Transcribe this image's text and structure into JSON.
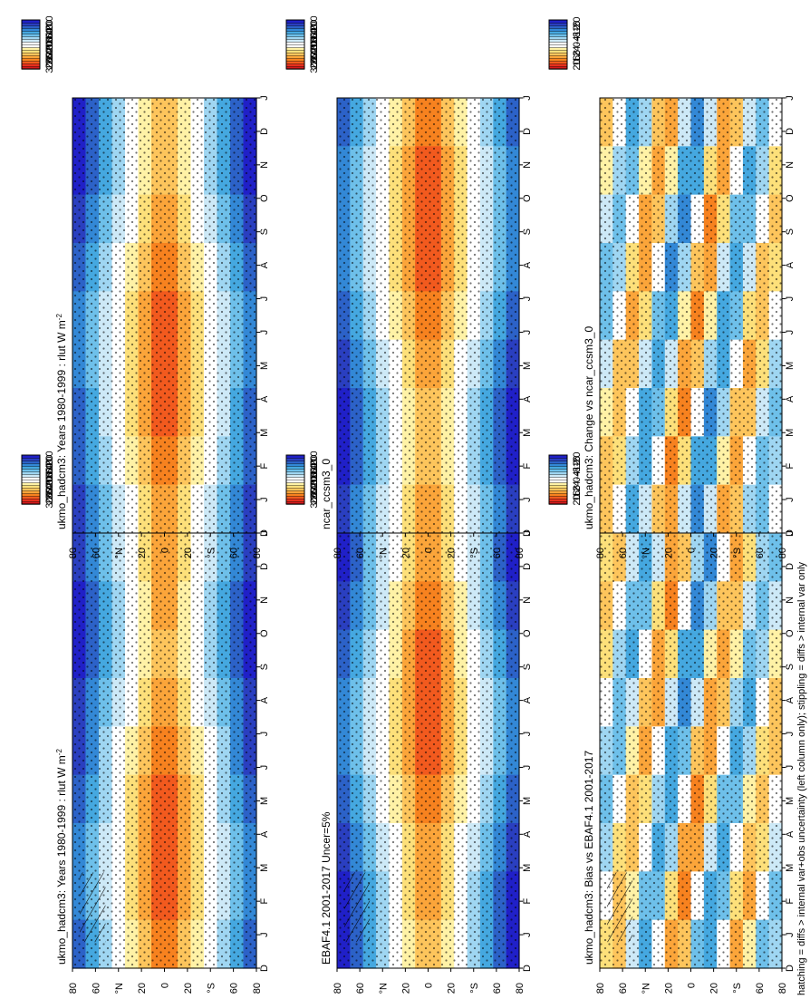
{
  "footnote": "hatching = diffs > internal var+obs uncertainty (left column only); stippling = diffs > internal var only",
  "months": [
    "D",
    "J",
    "F",
    "M",
    "A",
    "M",
    "J",
    "J",
    "A",
    "S",
    "O",
    "N",
    "D",
    "J"
  ],
  "lat_ticks": [
    "80",
    "60",
    "°N",
    "20",
    "0",
    "20",
    "°S",
    "60",
    "80"
  ],
  "palettes": {
    "abs": [
      "#d7191c",
      "#e8301e",
      "#f25a1e",
      "#f7821f",
      "#fba53a",
      "#fdc55c",
      "#fde07a",
      "#fff2a6",
      "#ffffff",
      "#ffffff",
      "#cde9f7",
      "#9fd6f2",
      "#6ec0ea",
      "#45a8e0",
      "#3388d6",
      "#2c62c8",
      "#2a3fc0",
      "#2020c8"
    ],
    "diff": [
      "#d7191c",
      "#e8301e",
      "#f25a1e",
      "#f7821f",
      "#fba53a",
      "#fdc55c",
      "#fde07a",
      "#fff2a6",
      "#ffffff",
      "#ffffff",
      "#cde9f7",
      "#9fd6f2",
      "#6ec0ea",
      "#45a8e0",
      "#3388d6",
      "#2c62c8",
      "#2a3fc0",
      "#2020c8"
    ]
  },
  "chart_data": [
    {
      "type": "heatmap",
      "title": "ukmo_hadcm3: Years 1980-1999 : rlut W m",
      "units_superscript": "-2",
      "x": [
        "D",
        "J",
        "F",
        "M",
        "A",
        "M",
        "J",
        "J",
        "A",
        "S",
        "O",
        "N",
        "D",
        "J"
      ],
      "y": [
        "80",
        "60",
        "°N",
        "20",
        "0",
        "20",
        "°S",
        "60",
        "80"
      ],
      "colorbar": {
        "ticks": [
          "300",
          "280",
          "260",
          "240",
          "220",
          "200",
          "180",
          "160",
          "140",
          "120",
          "100"
        ],
        "range": [
          100,
          310
        ]
      },
      "hatching": true,
      "stippling": true
    },
    {
      "type": "heatmap",
      "title": "ukmo_hadcm3: Years 1980-1999 : rlut W m",
      "units_superscript": "-2",
      "x": [
        "D",
        "J",
        "F",
        "M",
        "A",
        "M",
        "J",
        "J",
        "A",
        "S",
        "O",
        "N",
        "D",
        "J"
      ],
      "y": [
        "80",
        "60",
        "°N",
        "20",
        "0",
        "20",
        "°S",
        "60",
        "80"
      ],
      "colorbar": {
        "ticks": [
          "300",
          "280",
          "260",
          "240",
          "220",
          "200",
          "180",
          "160",
          "140",
          "120",
          "100"
        ],
        "range": [
          100,
          310
        ]
      },
      "hatching": false,
      "stippling": true
    },
    {
      "type": "heatmap",
      "title": "EBAF4.1 2001-2017 Uncer=5%",
      "units_superscript": "",
      "x": [
        "D",
        "J",
        "F",
        "M",
        "A",
        "M",
        "J",
        "J",
        "A",
        "S",
        "O",
        "N",
        "D",
        "J"
      ],
      "y": [
        "80",
        "60",
        "°N",
        "20",
        "0",
        "20",
        "°S",
        "60",
        "80"
      ],
      "colorbar": {
        "ticks": [
          "300",
          "280",
          "260",
          "240",
          "220",
          "200",
          "180",
          "160",
          "140",
          "120",
          "100"
        ],
        "range": [
          100,
          310
        ]
      },
      "hatching": true,
      "stippling": true
    },
    {
      "type": "heatmap",
      "title": "ncar_ccsm3_0",
      "units_superscript": "",
      "x": [
        "D",
        "J",
        "F",
        "M",
        "A",
        "M",
        "J",
        "J",
        "A",
        "S",
        "O",
        "N",
        "D",
        "J"
      ],
      "y": [
        "80",
        "60",
        "°N",
        "20",
        "0",
        "20",
        "°S",
        "60",
        "80"
      ],
      "colorbar": {
        "ticks": [
          "300",
          "280",
          "260",
          "240",
          "220",
          "200",
          "180",
          "160",
          "140",
          "120",
          "100"
        ],
        "range": [
          100,
          310
        ]
      },
      "hatching": false,
      "stippling": true
    },
    {
      "type": "heatmap",
      "title": "ukmo_hadcm3: Bias vs EBAF4.1 2001-2017",
      "units_superscript": "",
      "x": [
        "D",
        "J",
        "F",
        "M",
        "A",
        "M",
        "J",
        "J",
        "A",
        "S",
        "O",
        "N",
        "D",
        "J"
      ],
      "y": [
        "80",
        "60",
        "°N",
        "20",
        "0",
        "20",
        "°S",
        "60",
        "80"
      ],
      "colorbar": {
        "ticks": [
          "20",
          "16",
          "12",
          "8",
          "4",
          "0",
          "-4",
          "-8",
          "-12",
          "-16",
          "-20"
        ],
        "range": [
          -22,
          22
        ]
      },
      "hatching": true,
      "stippling": true
    },
    {
      "type": "heatmap",
      "title": "ukmo_hadcm3: Change vs ncar_ccsm3_0",
      "units_superscript": "",
      "x": [
        "D",
        "J",
        "F",
        "M",
        "A",
        "M",
        "J",
        "J",
        "A",
        "S",
        "O",
        "N",
        "D",
        "J"
      ],
      "y": [
        "80",
        "60",
        "°N",
        "20",
        "0",
        "20",
        "°S",
        "60",
        "80"
      ],
      "colorbar": {
        "ticks": [
          "20",
          "16",
          "12",
          "8",
          "4",
          "0",
          "-4",
          "-8",
          "-12",
          "-16",
          "-20"
        ],
        "range": [
          -22,
          22
        ]
      },
      "hatching": false,
      "stippling": true
    }
  ]
}
